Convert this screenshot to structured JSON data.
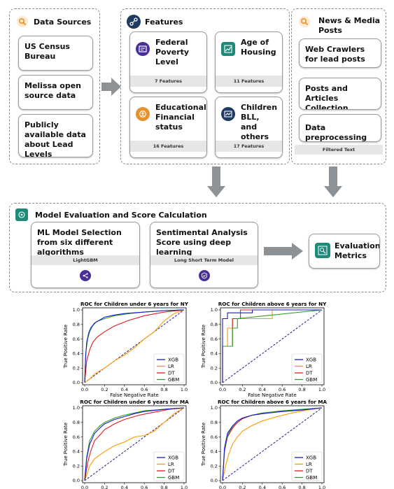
{
  "data_sources": {
    "title": "Data Sources",
    "items": [
      "US Census Bureau",
      "Melissa open source data",
      "Publicly available data about Lead Levels"
    ]
  },
  "features": {
    "title": "Features",
    "cards": [
      {
        "label": "Federal Poverty Level",
        "count": "7 Features"
      },
      {
        "label": "Age of Housing",
        "count": "11 Features"
      },
      {
        "label": "Educational, Financial status",
        "count": "16 Features"
      },
      {
        "label": "Children BLL, and others",
        "count": "17 Features"
      }
    ]
  },
  "news": {
    "title": "News & Media Posts",
    "items": [
      "Web Crawlers for lead posts",
      "Posts and Articles Collection",
      "Data preprocessing"
    ],
    "footer": "Filtered Text"
  },
  "evaluation": {
    "title": "Model Evaluation and Score Calculation",
    "ml_box": {
      "label": "ML Model Selection from six different algorithms",
      "bar": "LightGBM"
    },
    "sent_box": {
      "label": "Sentimental Analysis Score using deep learning",
      "bar": "Long Short Term Model"
    },
    "metrics": "Evaluation Metrics"
  },
  "colors": {
    "orange": "#e8922e",
    "navy": "#1f3a60",
    "teal": "#1f8a7a",
    "purple": "#4a2f9a",
    "xgb": "#1a1acc",
    "lr": "#ff9900",
    "dt": "#e41a1c",
    "gbm": "#2ca02c"
  },
  "chart_data": [
    {
      "type": "line",
      "title": "ROC for Children under 6 years for NY",
      "xlabel": "False Negative Rate",
      "ylabel": "True Positive Rate",
      "xlim": [
        0,
        1
      ],
      "ylim": [
        0,
        1
      ],
      "ticks": [
        "0.0",
        "0.2",
        "0.4",
        "0.6",
        "0.8",
        "1.0"
      ],
      "legend": "bottom-right",
      "series": [
        {
          "name": "XGB",
          "x": [
            0,
            0.01,
            0.02,
            0.04,
            0.06,
            0.1,
            0.15,
            0.2,
            0.3,
            0.4,
            0.6,
            0.8,
            1.0
          ],
          "y": [
            0,
            0.35,
            0.55,
            0.68,
            0.75,
            0.82,
            0.86,
            0.9,
            0.93,
            0.95,
            0.97,
            0.99,
            1.0
          ]
        },
        {
          "name": "LR",
          "x": [
            0,
            0.05,
            0.1,
            0.2,
            0.3,
            0.4,
            0.5,
            0.6,
            0.7,
            0.8,
            0.9,
            1.0
          ],
          "y": [
            0,
            0.05,
            0.12,
            0.2,
            0.3,
            0.38,
            0.48,
            0.6,
            0.7,
            0.85,
            0.95,
            1.0
          ]
        },
        {
          "name": "DT",
          "x": [
            0,
            0.02,
            0.05,
            0.08,
            0.12,
            0.2,
            0.3,
            0.45,
            0.6,
            0.8,
            1.0
          ],
          "y": [
            0,
            0.3,
            0.45,
            0.55,
            0.62,
            0.7,
            0.78,
            0.86,
            0.92,
            0.97,
            1.0
          ]
        },
        {
          "name": "GBM",
          "x": [
            0,
            0.01,
            0.03,
            0.05,
            0.08,
            0.12,
            0.2,
            0.3,
            0.45,
            0.6,
            0.8,
            1.0
          ],
          "y": [
            0,
            0.4,
            0.6,
            0.7,
            0.78,
            0.84,
            0.88,
            0.92,
            0.95,
            0.97,
            0.99,
            1.0
          ]
        }
      ]
    },
    {
      "type": "line",
      "title": "ROC for Children above 6 years for NY",
      "xlabel": "False Negative Rate",
      "ylabel": "True Positive Rate",
      "xlim": [
        0,
        1
      ],
      "ylim": [
        0,
        1
      ],
      "ticks": [
        "0.0",
        "0.2",
        "0.4",
        "0.6",
        "0.8",
        "1.0"
      ],
      "legend": "bottom-right",
      "series": [
        {
          "name": "XGB",
          "x": [
            0,
            0.0,
            0.05,
            0.05,
            0.3,
            0.3,
            1.0
          ],
          "y": [
            0,
            0.88,
            0.88,
            0.96,
            0.96,
            1.0,
            1.0
          ]
        },
        {
          "name": "LR",
          "x": [
            0,
            0.0,
            0.05,
            0.05,
            0.1,
            0.1,
            0.5,
            0.5,
            1.0
          ],
          "y": [
            0,
            0.5,
            0.5,
            0.75,
            0.75,
            0.88,
            0.88,
            1.0,
            1.0
          ]
        },
        {
          "name": "DT",
          "x": [
            0,
            0.0,
            0.1,
            0.1,
            0.18,
            0.18,
            1.0
          ],
          "y": [
            0,
            0.5,
            0.5,
            0.88,
            0.88,
            1.0,
            1.0
          ]
        },
        {
          "name": "GBM",
          "x": [
            0,
            0.0,
            0.1,
            0.1,
            0.15,
            0.15,
            1.0
          ],
          "y": [
            0,
            0.5,
            0.5,
            0.75,
            0.75,
            0.88,
            1.0
          ]
        }
      ]
    },
    {
      "type": "line",
      "title": "ROC for Children under 6 years for MA",
      "xlabel": "False Negative Rate",
      "ylabel": "True Positive Rate",
      "xlim": [
        0,
        1
      ],
      "ylim": [
        0,
        1
      ],
      "ticks": [
        "0.0",
        "0.2",
        "0.4",
        "0.6",
        "0.8",
        "1.0"
      ],
      "legend": "bottom-right",
      "series": [
        {
          "name": "XGB",
          "x": [
            0,
            0.02,
            0.05,
            0.1,
            0.15,
            0.2,
            0.3,
            0.4,
            0.5,
            0.6,
            0.8,
            1.0
          ],
          "y": [
            0,
            0.3,
            0.5,
            0.65,
            0.72,
            0.78,
            0.84,
            0.88,
            0.92,
            0.95,
            0.98,
            1.0
          ]
        },
        {
          "name": "LR",
          "x": [
            0,
            0.05,
            0.1,
            0.2,
            0.3,
            0.4,
            0.5,
            0.6,
            0.7,
            0.8,
            0.9,
            1.0
          ],
          "y": [
            0,
            0.2,
            0.3,
            0.4,
            0.48,
            0.53,
            0.6,
            0.62,
            0.68,
            0.8,
            0.92,
            1.0
          ]
        },
        {
          "name": "DT",
          "x": [
            0,
            0.03,
            0.06,
            0.1,
            0.15,
            0.2,
            0.3,
            0.4,
            0.55,
            0.7,
            0.85,
            1.0
          ],
          "y": [
            0,
            0.25,
            0.4,
            0.55,
            0.62,
            0.7,
            0.78,
            0.84,
            0.9,
            0.94,
            0.98,
            1.0
          ]
        },
        {
          "name": "GBM",
          "x": [
            0,
            0.02,
            0.05,
            0.1,
            0.15,
            0.2,
            0.3,
            0.4,
            0.5,
            0.6,
            0.8,
            1.0
          ],
          "y": [
            0,
            0.32,
            0.55,
            0.68,
            0.75,
            0.8,
            0.86,
            0.9,
            0.93,
            0.96,
            0.98,
            1.0
          ]
        }
      ]
    },
    {
      "type": "line",
      "title": "ROC for Children above 6 years for MA",
      "xlabel": "False Negative Rate",
      "ylabel": "True Positive Rate",
      "xlim": [
        0,
        1
      ],
      "ylim": [
        0,
        1
      ],
      "ticks": [
        "0.0",
        "0.2",
        "0.4",
        "0.6",
        "0.8",
        "1.0"
      ],
      "legend": "bottom-right",
      "series": [
        {
          "name": "XGB",
          "x": [
            0,
            0.02,
            0.05,
            0.1,
            0.15,
            0.2,
            0.3,
            0.4,
            0.6,
            0.8,
            1.0
          ],
          "y": [
            0,
            0.45,
            0.65,
            0.75,
            0.82,
            0.86,
            0.9,
            0.92,
            0.95,
            0.97,
            1.0
          ]
        },
        {
          "name": "LR",
          "x": [
            0,
            0.03,
            0.06,
            0.1,
            0.15,
            0.2,
            0.3,
            0.4,
            0.55,
            0.7,
            0.85,
            1.0
          ],
          "y": [
            0,
            0.2,
            0.35,
            0.5,
            0.6,
            0.68,
            0.76,
            0.82,
            0.88,
            0.93,
            0.97,
            1.0
          ]
        },
        {
          "name": "DT",
          "x": [
            0,
            0.02,
            0.05,
            0.1,
            0.15,
            0.2,
            0.3,
            0.4,
            0.6,
            0.8,
            1.0
          ],
          "y": [
            0,
            0.4,
            0.6,
            0.72,
            0.8,
            0.85,
            0.9,
            0.92,
            0.95,
            0.97,
            1.0
          ]
        },
        {
          "name": "GBM",
          "x": [
            0,
            0.02,
            0.05,
            0.1,
            0.15,
            0.2,
            0.3,
            0.4,
            0.6,
            0.8,
            1.0
          ],
          "y": [
            0,
            0.42,
            0.62,
            0.74,
            0.82,
            0.86,
            0.9,
            0.93,
            0.96,
            0.98,
            1.0
          ]
        }
      ]
    }
  ]
}
